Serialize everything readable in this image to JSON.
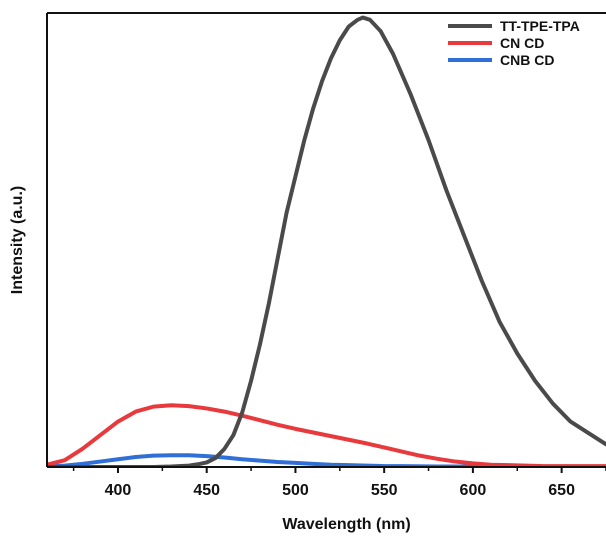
{
  "chart_data": {
    "type": "line",
    "title": "",
    "xlabel": "Wavelength (nm)",
    "ylabel": "Intensity (a.u.)",
    "xlim": [
      360,
      675
    ],
    "ylim": [
      0,
      1.0
    ],
    "xticks": [
      400,
      450,
      500,
      550,
      600,
      650
    ],
    "yticks_visible": false,
    "grid": false,
    "legend_position": "top-right",
    "series": [
      {
        "name": "TT-TPE-TPA",
        "color": "#4a4a4a",
        "points": [
          [
            360,
            0.0
          ],
          [
            380,
            0.0
          ],
          [
            400,
            0.0
          ],
          [
            420,
            0.0
          ],
          [
            430,
            0.001
          ],
          [
            440,
            0.003
          ],
          [
            445,
            0.006
          ],
          [
            450,
            0.01
          ],
          [
            455,
            0.02
          ],
          [
            460,
            0.04
          ],
          [
            465,
            0.07
          ],
          [
            470,
            0.12
          ],
          [
            475,
            0.19
          ],
          [
            480,
            0.27
          ],
          [
            485,
            0.36
          ],
          [
            490,
            0.46
          ],
          [
            495,
            0.56
          ],
          [
            500,
            0.64
          ],
          [
            505,
            0.72
          ],
          [
            510,
            0.79
          ],
          [
            515,
            0.85
          ],
          [
            520,
            0.9
          ],
          [
            525,
            0.94
          ],
          [
            530,
            0.97
          ],
          [
            535,
            0.985
          ],
          [
            538,
            0.99
          ],
          [
            542,
            0.985
          ],
          [
            548,
            0.96
          ],
          [
            555,
            0.91
          ],
          [
            565,
            0.82
          ],
          [
            575,
            0.72
          ],
          [
            585,
            0.61
          ],
          [
            595,
            0.51
          ],
          [
            605,
            0.41
          ],
          [
            615,
            0.32
          ],
          [
            625,
            0.25
          ],
          [
            635,
            0.19
          ],
          [
            645,
            0.14
          ],
          [
            655,
            0.1
          ],
          [
            665,
            0.075
          ],
          [
            675,
            0.05
          ]
        ]
      },
      {
        "name": "CN CD",
        "color": "#e8393c",
        "points": [
          [
            360,
            0.005
          ],
          [
            370,
            0.015
          ],
          [
            380,
            0.04
          ],
          [
            390,
            0.07
          ],
          [
            400,
            0.1
          ],
          [
            410,
            0.122
          ],
          [
            420,
            0.133
          ],
          [
            430,
            0.136
          ],
          [
            440,
            0.134
          ],
          [
            450,
            0.129
          ],
          [
            460,
            0.122
          ],
          [
            470,
            0.113
          ],
          [
            480,
            0.103
          ],
          [
            490,
            0.093
          ],
          [
            500,
            0.084
          ],
          [
            510,
            0.076
          ],
          [
            520,
            0.068
          ],
          [
            530,
            0.06
          ],
          [
            540,
            0.052
          ],
          [
            550,
            0.043
          ],
          [
            560,
            0.034
          ],
          [
            570,
            0.025
          ],
          [
            580,
            0.018
          ],
          [
            590,
            0.012
          ],
          [
            600,
            0.008
          ],
          [
            610,
            0.005
          ],
          [
            620,
            0.004
          ],
          [
            630,
            0.003
          ],
          [
            640,
            0.002
          ],
          [
            650,
            0.002
          ],
          [
            660,
            0.002
          ],
          [
            675,
            0.002
          ]
        ]
      },
      {
        "name": "CNB CD",
        "color": "#2f6fd6",
        "points": [
          [
            360,
            0.001
          ],
          [
            370,
            0.003
          ],
          [
            380,
            0.007
          ],
          [
            390,
            0.012
          ],
          [
            400,
            0.017
          ],
          [
            410,
            0.022
          ],
          [
            420,
            0.025
          ],
          [
            430,
            0.026
          ],
          [
            440,
            0.026
          ],
          [
            450,
            0.024
          ],
          [
            460,
            0.021
          ],
          [
            470,
            0.017
          ],
          [
            480,
            0.014
          ],
          [
            490,
            0.011
          ],
          [
            500,
            0.009
          ],
          [
            510,
            0.007
          ],
          [
            520,
            0.005
          ],
          [
            530,
            0.004
          ],
          [
            540,
            0.003
          ],
          [
            550,
            0.002
          ],
          [
            560,
            0.002
          ],
          [
            580,
            0.001
          ],
          [
            600,
            0.001
          ],
          [
            620,
            0.001
          ],
          [
            650,
            0.001
          ],
          [
            675,
            0.001
          ]
        ]
      }
    ]
  }
}
